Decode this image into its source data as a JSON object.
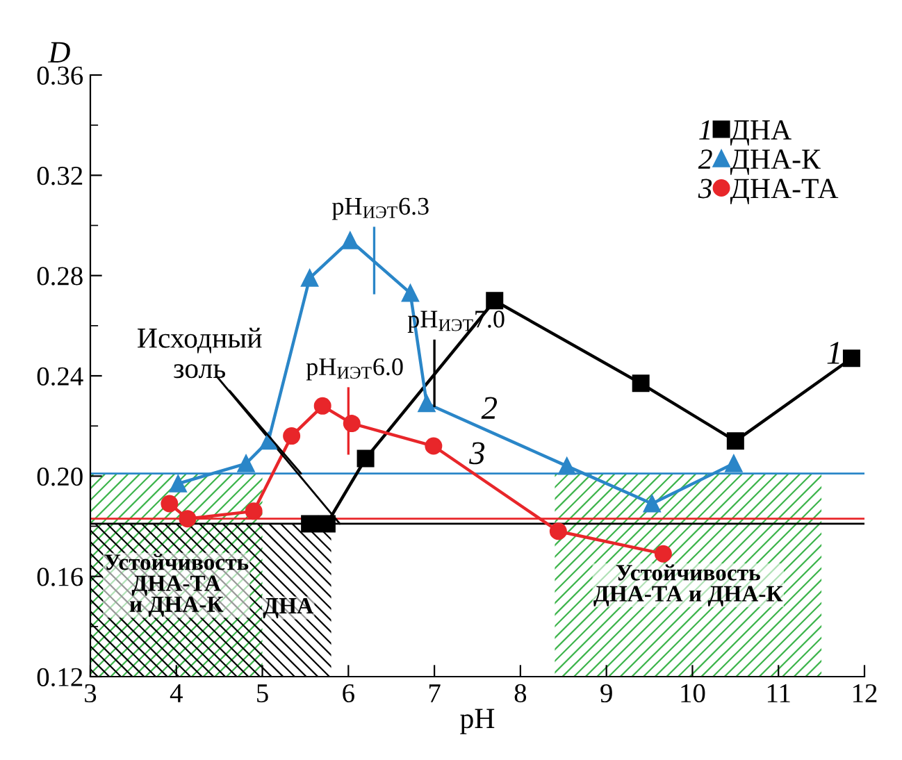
{
  "chart_data": {
    "type": "line",
    "xlabel": "pH",
    "ylabel": "D",
    "xlim": [
      3,
      12
    ],
    "xticks": [
      3,
      4,
      5,
      6,
      7,
      8,
      9,
      10,
      11,
      12
    ],
    "ylim": [
      0.12,
      0.36
    ],
    "yticks": [
      0.12,
      0.16,
      {
        "value": 0.2,
        "label": "0.20"
      },
      0.24,
      0.28,
      0.32,
      0.36
    ],
    "grid": false,
    "legend": "top right",
    "line_style": "solid",
    "series": [
      {
        "name": "ДНА",
        "color": "#000000",
        "marker": "square",
        "x": [
          5.55,
          5.75,
          6.2,
          7.7,
          9.4,
          10.5,
          11.85
        ],
        "values": [
          0.181,
          0.181,
          0.207,
          0.27,
          0.237,
          0.214,
          0.247
        ]
      },
      {
        "name": "ДНА-К",
        "color": "#2a86c8",
        "marker": "triangle",
        "x": [
          4.02,
          4.81,
          5.07,
          5.55,
          6.02,
          6.72,
          6.91,
          8.54,
          9.53,
          10.48
        ],
        "values": [
          0.197,
          0.205,
          0.214,
          0.279,
          0.294,
          0.273,
          0.229,
          0.204,
          0.189,
          0.205
        ]
      },
      {
        "name": "ДНА-ТА",
        "color": "#e8262a",
        "marker": "circle",
        "x": [
          3.92,
          4.13,
          4.9,
          5.34,
          5.7,
          6.04,
          6.99,
          8.44,
          9.66
        ],
        "values": [
          0.189,
          0.183,
          0.186,
          0.216,
          0.228,
          0.221,
          0.212,
          0.178,
          0.169
        ]
      }
    ],
    "ref_lines": [
      {
        "axis": "y",
        "value": 0.201,
        "color": "#2a86c8"
      },
      {
        "axis": "y",
        "value": 0.183,
        "color": "#e8262a"
      },
      {
        "axis": "y",
        "value": 0.181,
        "color": "#000000"
      }
    ],
    "bands": [
      {
        "axis": "x",
        "from": 3,
        "to": 5.0,
        "color": "#3cb44b",
        "label": "Устойчивость\nДНА-ТА\nи ДНА-К"
      },
      {
        "axis": "x",
        "from": 8.4,
        "to": 11.5,
        "color": "#3cb44b",
        "label": "Устойчивость\nДНА-ТА и ДНА-К"
      },
      {
        "axis": "x",
        "from": 3,
        "to": 5.8,
        "color": "#000000",
        "label": "ДНА"
      }
    ],
    "annotations": [
      "1",
      "2",
      "3",
      {
        "text": "pH$_{ИЭТ}$6.3",
        "x": 6.3,
        "y": 0.286
      },
      {
        "text": "pH$_{ИЭТ}$7.0",
        "x": 7.0,
        "y": 0.241
      },
      {
        "text": "pH$_{ИЭТ}$6.0",
        "x": 6.0,
        "y": 0.222
      },
      {
        "text": "Исходный\nзоль",
        "x": 5.45,
        "y": 0.201
      }
    ]
  }
}
